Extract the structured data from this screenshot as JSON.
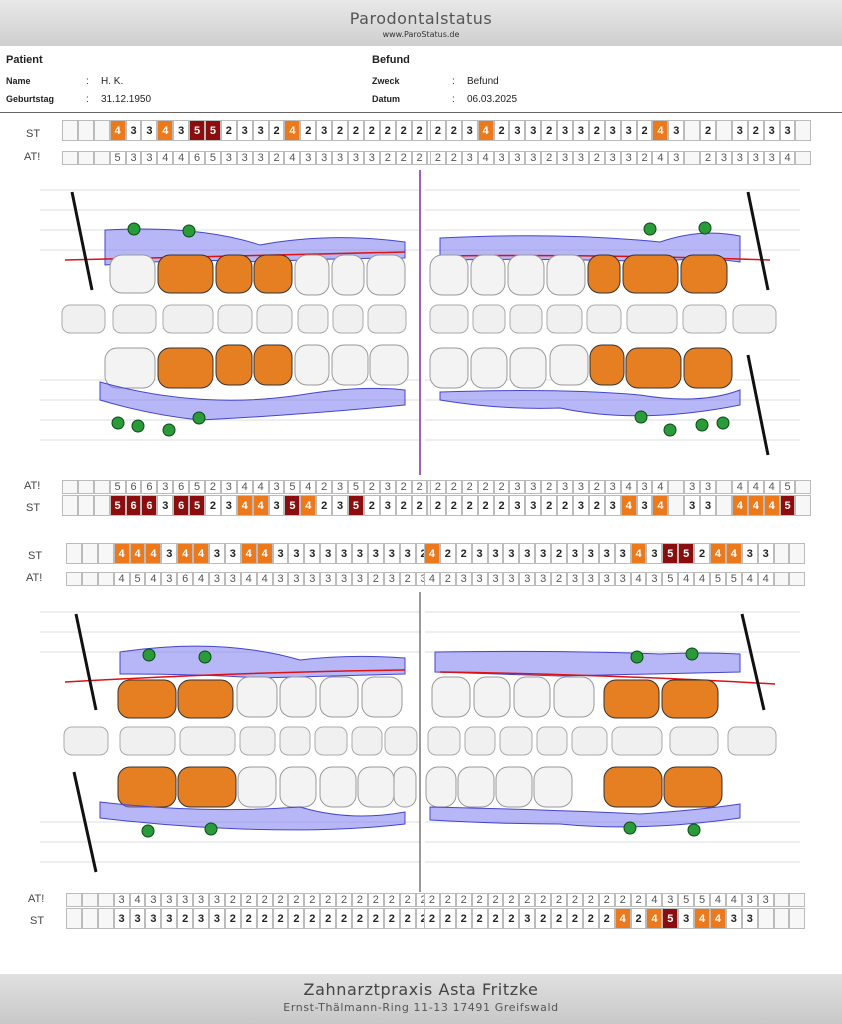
{
  "header": {
    "title": "Parodontalstatus",
    "url": "www.ParoStatus.de"
  },
  "patient": {
    "heading": "Patient",
    "name_label": "Name",
    "name": "H. K.",
    "dob_label": "Geburtstag",
    "dob": "31.12.1950"
  },
  "befund": {
    "heading": "Befund",
    "zweck_label": "Zweck",
    "zweck": "Befund",
    "datum_label": "Datum",
    "datum": "06.03.2025"
  },
  "labels": {
    "st": "ST",
    "at": "AT!",
    "colon": ":"
  },
  "upper": {
    "st_left": [
      "",
      "",
      "",
      "4",
      "3",
      "3",
      "4",
      "3",
      "5",
      "5",
      "2",
      "3",
      "3",
      "2",
      "4",
      "2",
      "3",
      "2",
      "2",
      "2",
      "2",
      "2",
      "2",
      "2"
    ],
    "st_left_cls": [
      "",
      "",
      "",
      "o",
      "w",
      "w",
      "o",
      "w",
      "r",
      "r",
      "w",
      "w",
      "w",
      "w",
      "o",
      "w",
      "w",
      "w",
      "w",
      "w",
      "w",
      "w",
      "w",
      "w"
    ],
    "at_left": [
      "",
      "",
      "",
      "5",
      "3",
      "3",
      "4",
      "4",
      "6",
      "5",
      "3",
      "3",
      "3",
      "2",
      "4",
      "3",
      "3",
      "3",
      "3",
      "3",
      "2",
      "2",
      "2",
      "2"
    ],
    "st_right": [
      "2",
      "2",
      "3",
      "4",
      "2",
      "3",
      "3",
      "2",
      "3",
      "3",
      "2",
      "3",
      "3",
      "2",
      "4",
      "3",
      "",
      "2",
      "",
      "3",
      "2",
      "3",
      "3",
      ""
    ],
    "st_right_cls": [
      "w",
      "w",
      "w",
      "o",
      "w",
      "w",
      "w",
      "w",
      "w",
      "w",
      "w",
      "w",
      "w",
      "w",
      "o",
      "w",
      "",
      "w",
      "",
      "w",
      "w",
      "w",
      "w",
      ""
    ],
    "at_right": [
      "2",
      "2",
      "3",
      "4",
      "3",
      "3",
      "3",
      "2",
      "3",
      "3",
      "2",
      "3",
      "3",
      "2",
      "4",
      "3",
      "",
      "2",
      "3",
      "3",
      "3",
      "3",
      "4",
      ""
    ],
    "low_at_left": [
      "",
      "",
      "",
      "5",
      "6",
      "6",
      "3",
      "6",
      "5",
      "2",
      "3",
      "4",
      "4",
      "3",
      "5",
      "4",
      "2",
      "3",
      "5",
      "2",
      "3",
      "2",
      "2",
      ""
    ],
    "low_st_left": [
      "",
      "",
      "",
      "5",
      "6",
      "6",
      "3",
      "6",
      "5",
      "2",
      "3",
      "4",
      "4",
      "3",
      "5",
      "4",
      "2",
      "3",
      "5",
      "2",
      "3",
      "2",
      "2",
      ""
    ],
    "low_st_left_cls": [
      "",
      "",
      "",
      "r",
      "r",
      "r",
      "w",
      "r",
      "r",
      "w",
      "w",
      "o",
      "o",
      "w",
      "r",
      "o",
      "w",
      "w",
      "r",
      "w",
      "w",
      "w",
      "w",
      ""
    ],
    "low_at_right": [
      "2",
      "2",
      "2",
      "2",
      "2",
      "3",
      "3",
      "2",
      "3",
      "3",
      "2",
      "3",
      "4",
      "3",
      "4",
      "",
      "3",
      "3",
      "",
      "4",
      "4",
      "4",
      "5",
      ""
    ],
    "low_st_right": [
      "2",
      "2",
      "2",
      "2",
      "2",
      "3",
      "3",
      "2",
      "2",
      "3",
      "2",
      "3",
      "4",
      "3",
      "4",
      "",
      "3",
      "3",
      "",
      "4",
      "4",
      "4",
      "5",
      ""
    ],
    "low_st_right_cls": [
      "w",
      "w",
      "w",
      "w",
      "w",
      "w",
      "w",
      "w",
      "w",
      "w",
      "w",
      "w",
      "o",
      "w",
      "o",
      "",
      "w",
      "w",
      "",
      "o",
      "o",
      "o",
      "r",
      ""
    ]
  },
  "lower": {
    "st_left": [
      "",
      "",
      "",
      "4",
      "4",
      "4",
      "3",
      "4",
      "4",
      "3",
      "3",
      "4",
      "4",
      "3",
      "3",
      "3",
      "3",
      "3",
      "3",
      "3",
      "3",
      "3",
      "2",
      "3"
    ],
    "st_left_cls": [
      "",
      "",
      "",
      "o",
      "o",
      "o",
      "w",
      "o",
      "o",
      "w",
      "w",
      "o",
      "o",
      "w",
      "w",
      "w",
      "w",
      "w",
      "w",
      "w",
      "w",
      "w",
      "w",
      "w"
    ],
    "at_left": [
      "",
      "",
      "",
      "4",
      "5",
      "4",
      "3",
      "6",
      "4",
      "3",
      "3",
      "4",
      "4",
      "3",
      "3",
      "3",
      "3",
      "3",
      "3",
      "2",
      "3",
      "2",
      "3",
      "3"
    ],
    "st_right": [
      "4",
      "2",
      "2",
      "3",
      "3",
      "3",
      "3",
      "3",
      "2",
      "3",
      "3",
      "3",
      "3",
      "4",
      "3",
      "5",
      "5",
      "2",
      "4",
      "4",
      "3",
      "3",
      "",
      ""
    ],
    "st_right_cls": [
      "o",
      "w",
      "w",
      "w",
      "w",
      "w",
      "w",
      "w",
      "w",
      "w",
      "w",
      "w",
      "w",
      "o",
      "w",
      "r",
      "r",
      "w",
      "o",
      "o",
      "w",
      "w",
      "",
      ""
    ],
    "at_right": [
      "4",
      "2",
      "3",
      "3",
      "3",
      "3",
      "3",
      "3",
      "2",
      "3",
      "3",
      "3",
      "3",
      "4",
      "3",
      "5",
      "4",
      "4",
      "5",
      "5",
      "4",
      "4",
      "",
      ""
    ],
    "low_at_left": [
      "",
      "",
      "",
      "3",
      "4",
      "3",
      "3",
      "3",
      "3",
      "3",
      "2",
      "2",
      "2",
      "2",
      "2",
      "2",
      "2",
      "2",
      "2",
      "2",
      "2",
      "2",
      "2",
      "2"
    ],
    "low_st_left": [
      "",
      "",
      "",
      "3",
      "3",
      "3",
      "3",
      "2",
      "3",
      "3",
      "2",
      "2",
      "2",
      "2",
      "2",
      "2",
      "2",
      "2",
      "2",
      "2",
      "2",
      "2",
      "2",
      "2"
    ],
    "low_at_right": [
      "2",
      "2",
      "2",
      "2",
      "2",
      "2",
      "2",
      "2",
      "2",
      "2",
      "2",
      "2",
      "2",
      "2",
      "4",
      "3",
      "5",
      "5",
      "4",
      "4",
      "3",
      "3",
      "",
      ""
    ],
    "low_st_right": [
      "2",
      "2",
      "2",
      "2",
      "2",
      "2",
      "3",
      "2",
      "2",
      "2",
      "2",
      "2",
      "4",
      "2",
      "4",
      "5",
      "3",
      "4",
      "4",
      "3",
      "3",
      "",
      "",
      ""
    ],
    "low_st_right_cls": [
      "w",
      "w",
      "w",
      "w",
      "w",
      "w",
      "w",
      "w",
      "w",
      "w",
      "w",
      "w",
      "o",
      "w",
      "o",
      "r",
      "w",
      "o",
      "o",
      "w",
      "w",
      "",
      "",
      ""
    ]
  },
  "footer": {
    "practice": "Zahnarztpraxis Asta Fritzke",
    "address": "Ernst-Thälmann-Ring 11-13 17491 Greifswald"
  },
  "colors": {
    "pocket": "#ec7a1c",
    "deep": "#8b0d0d",
    "gum": "#7b7bf2",
    "bleeding": "#d11",
    "implant": "#1a8a2a"
  }
}
